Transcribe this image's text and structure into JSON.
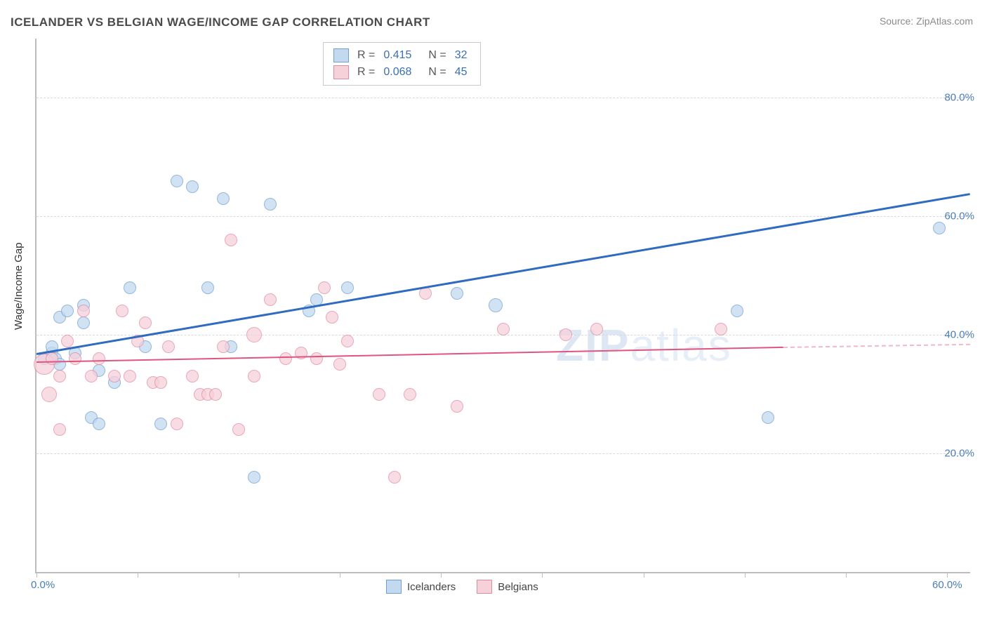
{
  "title": "ICELANDER VS BELGIAN WAGE/INCOME GAP CORRELATION CHART",
  "source": "Source: ZipAtlas.com",
  "ylabel": "Wage/Income Gap",
  "watermark_bold": "ZIP",
  "watermark_light": "atlas",
  "chart": {
    "type": "scatter",
    "background_color": "#ffffff",
    "grid_color": "#d9d9d9",
    "axis_color": "#bdbdbd",
    "value_text_color": "#4a7db8",
    "label_text_color": "#555555",
    "title_fontsize": 17,
    "label_fontsize": 15,
    "xlim": [
      0,
      60
    ],
    "ylim": [
      0,
      90
    ],
    "x_tick_positions": [
      0,
      6.5,
      13,
      19.5,
      26,
      32.5,
      39,
      45.5,
      52,
      58.5
    ],
    "x_tick_labels": {
      "0": "0.0%",
      "58.5": "60.0%"
    },
    "y_ticks": [
      20,
      40,
      60,
      80
    ],
    "y_tick_labels": [
      "20.0%",
      "40.0%",
      "60.0%",
      "80.0%"
    ],
    "point_radius_default": 8,
    "point_stroke_width": 1.2,
    "series": [
      {
        "id": "icelanders",
        "label": "Icelanders",
        "fill_color": "#c2d9f0",
        "stroke_color": "#6f9fd4",
        "fill_opacity": 0.75,
        "R": "0.415",
        "N": "32",
        "trend": {
          "x1": 0,
          "y1": 37,
          "x2": 60,
          "y2": 64,
          "color": "#2f6bc0",
          "width": 2.5,
          "dash": "none"
        },
        "points": [
          [
            0.5,
            36,
            8
          ],
          [
            1,
            37,
            8
          ],
          [
            1,
            38,
            8
          ],
          [
            1.2,
            36,
            8
          ],
          [
            1.5,
            43,
            8
          ],
          [
            2,
            44,
            8
          ],
          [
            2.5,
            37,
            8
          ],
          [
            3,
            42,
            8
          ],
          [
            3,
            45,
            8
          ],
          [
            3.5,
            26,
            8
          ],
          [
            4,
            34,
            8
          ],
          [
            4,
            25,
            8
          ],
          [
            5,
            32,
            8
          ],
          [
            6,
            48,
            8
          ],
          [
            7,
            38,
            8
          ],
          [
            8,
            25,
            8
          ],
          [
            9,
            66,
            8
          ],
          [
            10,
            65,
            8
          ],
          [
            11,
            48,
            8
          ],
          [
            12,
            63,
            8
          ],
          [
            12.5,
            38,
            8
          ],
          [
            14,
            16,
            8
          ],
          [
            15,
            62,
            8
          ],
          [
            17.5,
            44,
            8
          ],
          [
            18,
            46,
            8
          ],
          [
            20,
            48,
            8
          ],
          [
            27,
            47,
            8
          ],
          [
            29.5,
            45,
            9
          ],
          [
            45,
            44,
            8
          ],
          [
            47,
            26,
            8
          ],
          [
            58,
            58,
            8
          ],
          [
            1.5,
            35,
            8
          ]
        ]
      },
      {
        "id": "belgians",
        "label": "Belgians",
        "fill_color": "#f6d1da",
        "stroke_color": "#e38aa3",
        "fill_opacity": 0.75,
        "R": "0.068",
        "N": "45",
        "trend": {
          "x1": 0,
          "y1": 35.5,
          "x2": 48,
          "y2": 38,
          "color": "#e0557f",
          "width": 2.2,
          "dash": "none",
          "extend": {
            "x2": 60,
            "y2": 38.5,
            "dash": "4 4",
            "color": "#f0b8c8"
          }
        },
        "points": [
          [
            0.5,
            35,
            14
          ],
          [
            0.8,
            30,
            10
          ],
          [
            1,
            36,
            8
          ],
          [
            1.5,
            33,
            8
          ],
          [
            1.5,
            24,
            8
          ],
          [
            2,
            39,
            8
          ],
          [
            2.5,
            36,
            8
          ],
          [
            3,
            44,
            8
          ],
          [
            3.5,
            33,
            8
          ],
          [
            4,
            36,
            8
          ],
          [
            5,
            33,
            8
          ],
          [
            5.5,
            44,
            8
          ],
          [
            6,
            33,
            8
          ],
          [
            6.5,
            39,
            8
          ],
          [
            7,
            42,
            8
          ],
          [
            7.5,
            32,
            8
          ],
          [
            8,
            32,
            8
          ],
          [
            8.5,
            38,
            8
          ],
          [
            9,
            25,
            8
          ],
          [
            10,
            33,
            8
          ],
          [
            10.5,
            30,
            8
          ],
          [
            11,
            30,
            8
          ],
          [
            12,
            38,
            8
          ],
          [
            12.5,
            56,
            8
          ],
          [
            13,
            24,
            8
          ],
          [
            14,
            33,
            8
          ],
          [
            14,
            40,
            10
          ],
          [
            15,
            46,
            8
          ],
          [
            16,
            36,
            8
          ],
          [
            17,
            37,
            8
          ],
          [
            18,
            36,
            8
          ],
          [
            18.5,
            48,
            8
          ],
          [
            19,
            43,
            8
          ],
          [
            20,
            39,
            8
          ],
          [
            22,
            30,
            8
          ],
          [
            23,
            16,
            8
          ],
          [
            24,
            30,
            8
          ],
          [
            25,
            47,
            8
          ],
          [
            27,
            28,
            8
          ],
          [
            30,
            41,
            8
          ],
          [
            34,
            40,
            8
          ],
          [
            36,
            41,
            8
          ],
          [
            44,
            41,
            8
          ],
          [
            19.5,
            35,
            8
          ],
          [
            11.5,
            30,
            8
          ]
        ]
      }
    ]
  },
  "legend_top_labels": {
    "R": "R  =",
    "N": "N  ="
  },
  "legend_bottom": [
    "Icelanders",
    "Belgians"
  ]
}
